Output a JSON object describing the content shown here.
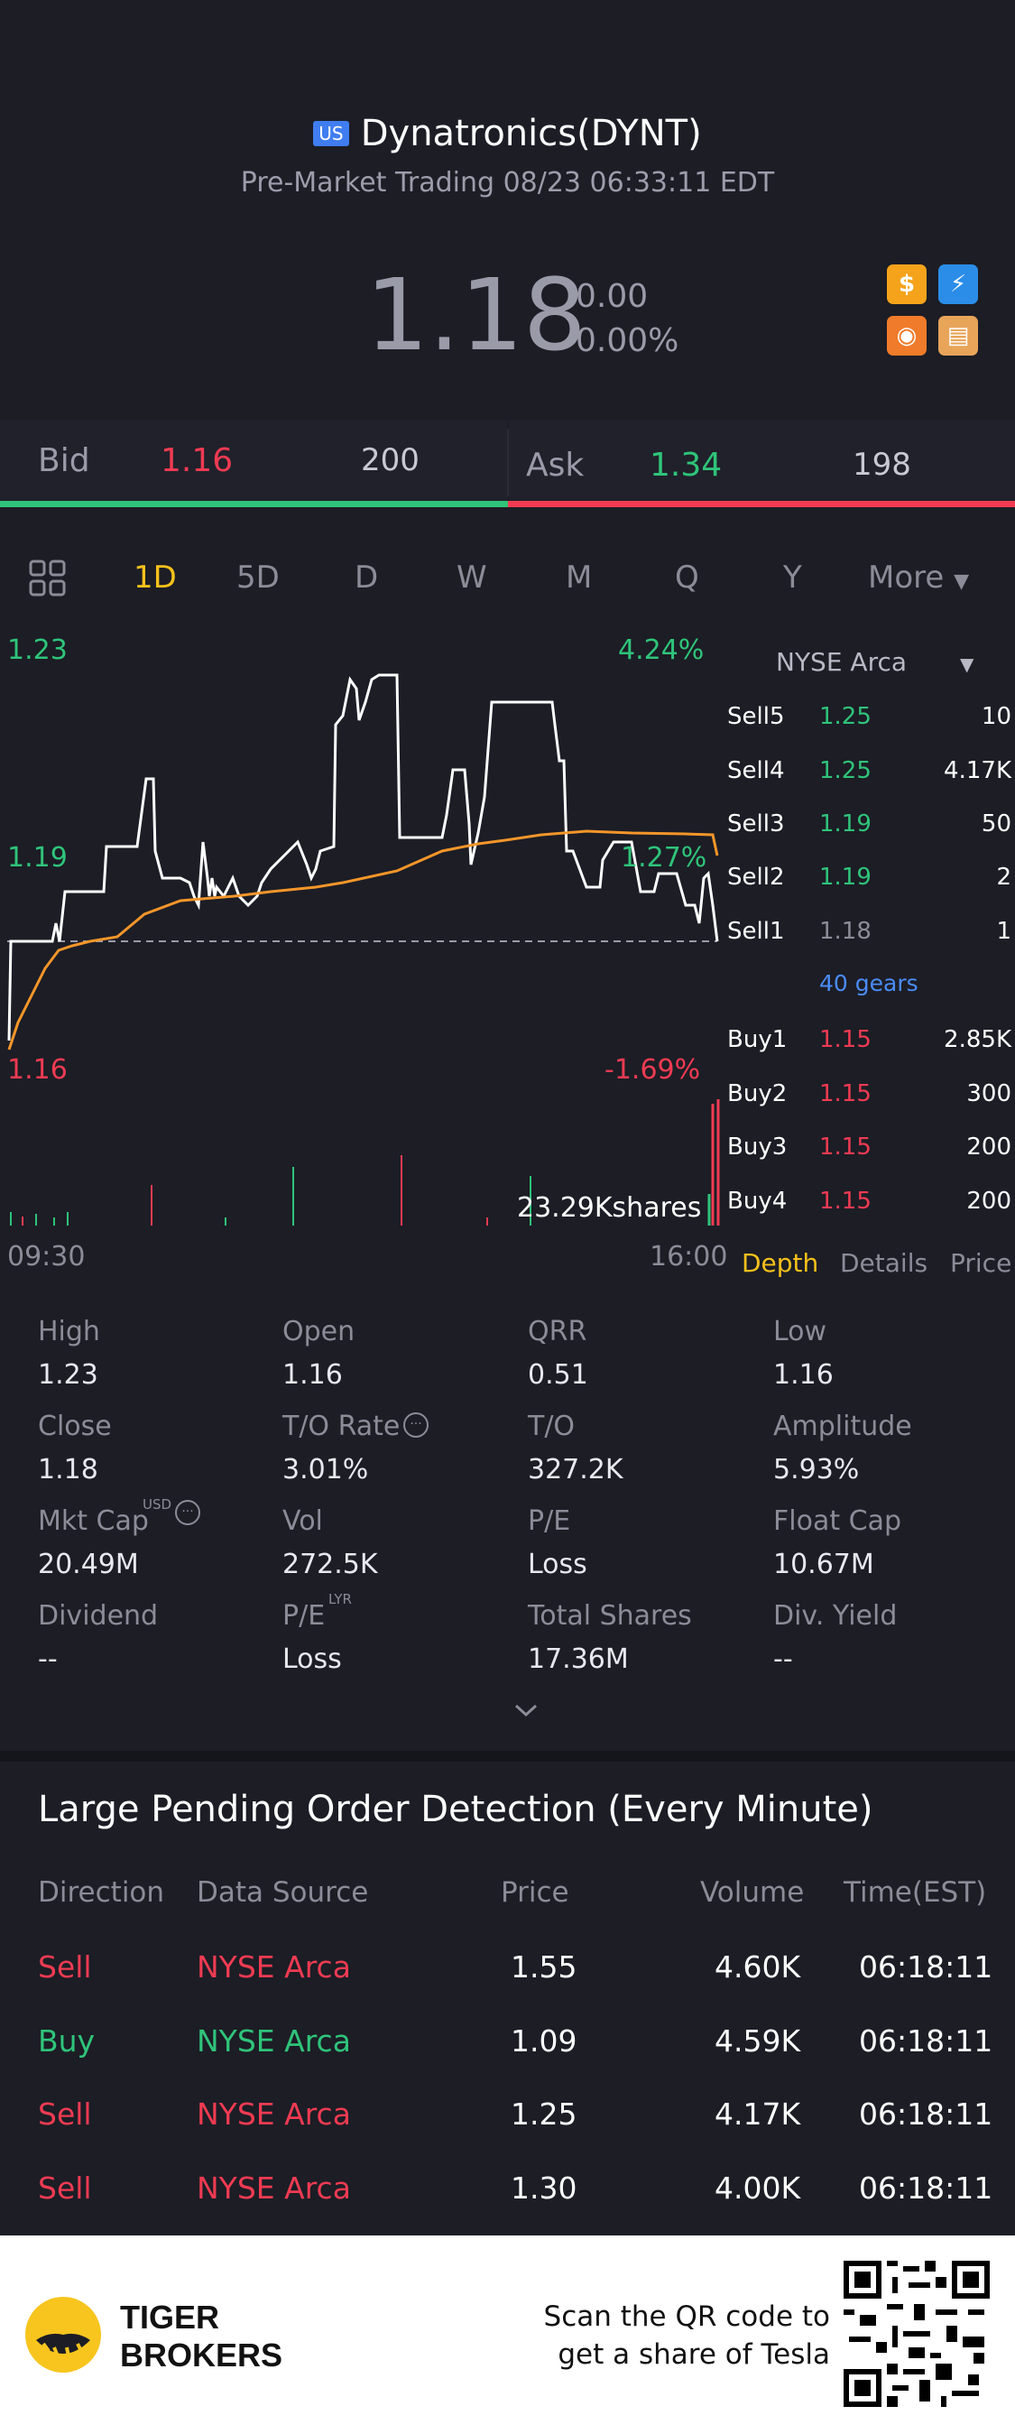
{
  "header": {
    "market_badge": "US",
    "title": "Dynatronics(DYNT)",
    "subtitle": "Pre-Market Trading 08/23 06:33:11 EDT",
    "price": "1.18",
    "change": "0.00",
    "change_pct": "0.00%"
  },
  "bidask": {
    "bid_label": "Bid",
    "bid_price": "1.16",
    "bid_size": "200",
    "ask_label": "Ask",
    "ask_price": "1.34",
    "ask_size": "198"
  },
  "tabs": {
    "items": [
      "1D",
      "5D",
      "D",
      "W",
      "M",
      "Q",
      "Y"
    ],
    "active": "1D",
    "more": "More"
  },
  "chart": {
    "high_price": "1.23",
    "high_pct": "4.24%",
    "mid_price": "1.19",
    "mid_pct": "1.27%",
    "low_price": "1.16",
    "low_pct": "-1.69%",
    "volume_label": "23.29Kshares",
    "time_start": "09:30",
    "time_end": "16:00"
  },
  "orderbook": {
    "exchange": "NYSE Arca",
    "sells": [
      {
        "label": "Sell5",
        "price": "1.25",
        "size": "10"
      },
      {
        "label": "Sell4",
        "price": "1.25",
        "size": "4.17K"
      },
      {
        "label": "Sell3",
        "price": "1.19",
        "size": "50"
      },
      {
        "label": "Sell2",
        "price": "1.19",
        "size": "2"
      },
      {
        "label": "Sell1",
        "price": "1.18",
        "size": "1"
      }
    ],
    "gears": "40 gears",
    "buys": [
      {
        "label": "Buy1",
        "price": "1.15",
        "size": "2.85K"
      },
      {
        "label": "Buy2",
        "price": "1.15",
        "size": "300"
      },
      {
        "label": "Buy3",
        "price": "1.15",
        "size": "200"
      },
      {
        "label": "Buy4",
        "price": "1.15",
        "size": "200"
      }
    ],
    "tabs": [
      "Depth",
      "Details",
      "Price"
    ]
  },
  "stats": {
    "high": {
      "label": "High",
      "value": "1.23"
    },
    "open": {
      "label": "Open",
      "value": "1.16"
    },
    "qrr": {
      "label": "QRR",
      "value": "0.51"
    },
    "low": {
      "label": "Low",
      "value": "1.16"
    },
    "close": {
      "label": "Close",
      "value": "1.18"
    },
    "to_rate": {
      "label": "T/O Rate",
      "value": "3.01%"
    },
    "to": {
      "label": "T/O",
      "value": "327.2K"
    },
    "amplitude": {
      "label": "Amplitude",
      "value": "5.93%"
    },
    "mkt_cap": {
      "label": "Mkt Cap",
      "sup": "USD",
      "value": "20.49M"
    },
    "vol": {
      "label": "Vol",
      "value": "272.5K"
    },
    "pe": {
      "label": "P/E",
      "value": "Loss"
    },
    "float_cap": {
      "label": "Float Cap",
      "value": "10.67M"
    },
    "dividend": {
      "label": "Dividend",
      "value": "--"
    },
    "pe_lyr": {
      "label": "P/E",
      "sup": "LYR",
      "value": "Loss"
    },
    "total_shares": {
      "label": "Total Shares",
      "value": "17.36M"
    },
    "div_yield": {
      "label": "Div. Yield",
      "value": "--"
    }
  },
  "large_orders": {
    "title": "Large Pending Order Detection (Every Minute)",
    "headers": [
      "Direction",
      "Data Source",
      "Price",
      "Volume",
      "Time(EST)"
    ],
    "rows": [
      {
        "direction": "Sell",
        "source": "NYSE Arca",
        "price": "1.55",
        "volume": "4.60K",
        "time": "06:18:11",
        "side": "sell"
      },
      {
        "direction": "Buy",
        "source": "NYSE Arca",
        "price": "1.09",
        "volume": "4.59K",
        "time": "06:18:11",
        "side": "buy"
      },
      {
        "direction": "Sell",
        "source": "NYSE Arca",
        "price": "1.25",
        "volume": "4.17K",
        "time": "06:18:11",
        "side": "sell"
      },
      {
        "direction": "Sell",
        "source": "NYSE Arca",
        "price": "1.30",
        "volume": "4.00K",
        "time": "06:18:11",
        "side": "sell"
      }
    ]
  },
  "footer": {
    "brand_line1": "TIGER",
    "brand_line2": "BROKERS",
    "scan_line1": "Scan the QR code to",
    "scan_line2": "get a share of Tesla"
  },
  "colors": {
    "up": "#2fc47a",
    "down": "#ef3b52",
    "accent": "#f5c11b",
    "link": "#4a8cf7",
    "background": "#1c1d25"
  }
}
